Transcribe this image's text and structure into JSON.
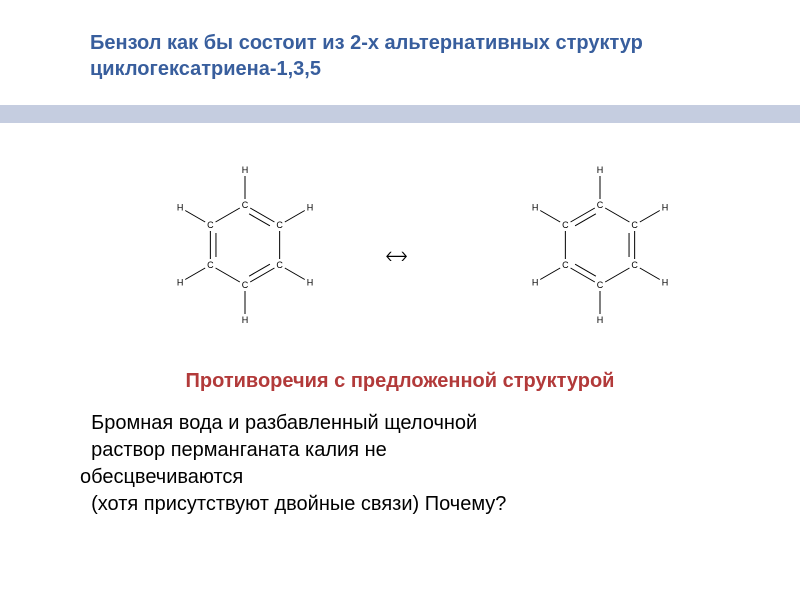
{
  "title": "Бензол как бы состоит из 2-х альтернативных структур циклогексатриена-1,3,5",
  "arrow_symbol": "🡘",
  "subheading": "Противоречия с предложенной структурой",
  "body_text_line1": "  Бромная вода и разбавленный щелочной",
  "body_text_line2": "  раствор перманганата калия не",
  "body_text_line3": "обесцвечиваются",
  "body_text_line4": "  (хотя присутствуют двойные связи) Почему?",
  "colors": {
    "title_color": "#385e9d",
    "divider_color": "#c5cde0",
    "subhead_color": "#b23a3a",
    "body_color": "#000000",
    "background": "#ffffff",
    "bond_color": "#000000"
  },
  "molecule_left": {
    "type": "benzene-kekule-1",
    "atoms_ring": [
      "C",
      "C",
      "C",
      "C",
      "C",
      "C"
    ],
    "atoms_outer": [
      "H",
      "H",
      "H",
      "H",
      "H",
      "H"
    ],
    "double_bonds": [
      [
        0,
        1
      ],
      [
        2,
        3
      ],
      [
        4,
        5
      ]
    ]
  },
  "molecule_right": {
    "type": "benzene-kekule-2",
    "atoms_ring": [
      "C",
      "C",
      "C",
      "C",
      "C",
      "C"
    ],
    "atoms_outer": [
      "H",
      "H",
      "H",
      "H",
      "H",
      "H"
    ],
    "double_bonds": [
      [
        1,
        2
      ],
      [
        3,
        4
      ],
      [
        5,
        0
      ]
    ]
  },
  "hex_geometry": {
    "ring_radius": 40,
    "outer_radius": 75,
    "bond_gap": 6,
    "double_offset": 3.5,
    "line_width": 1
  }
}
